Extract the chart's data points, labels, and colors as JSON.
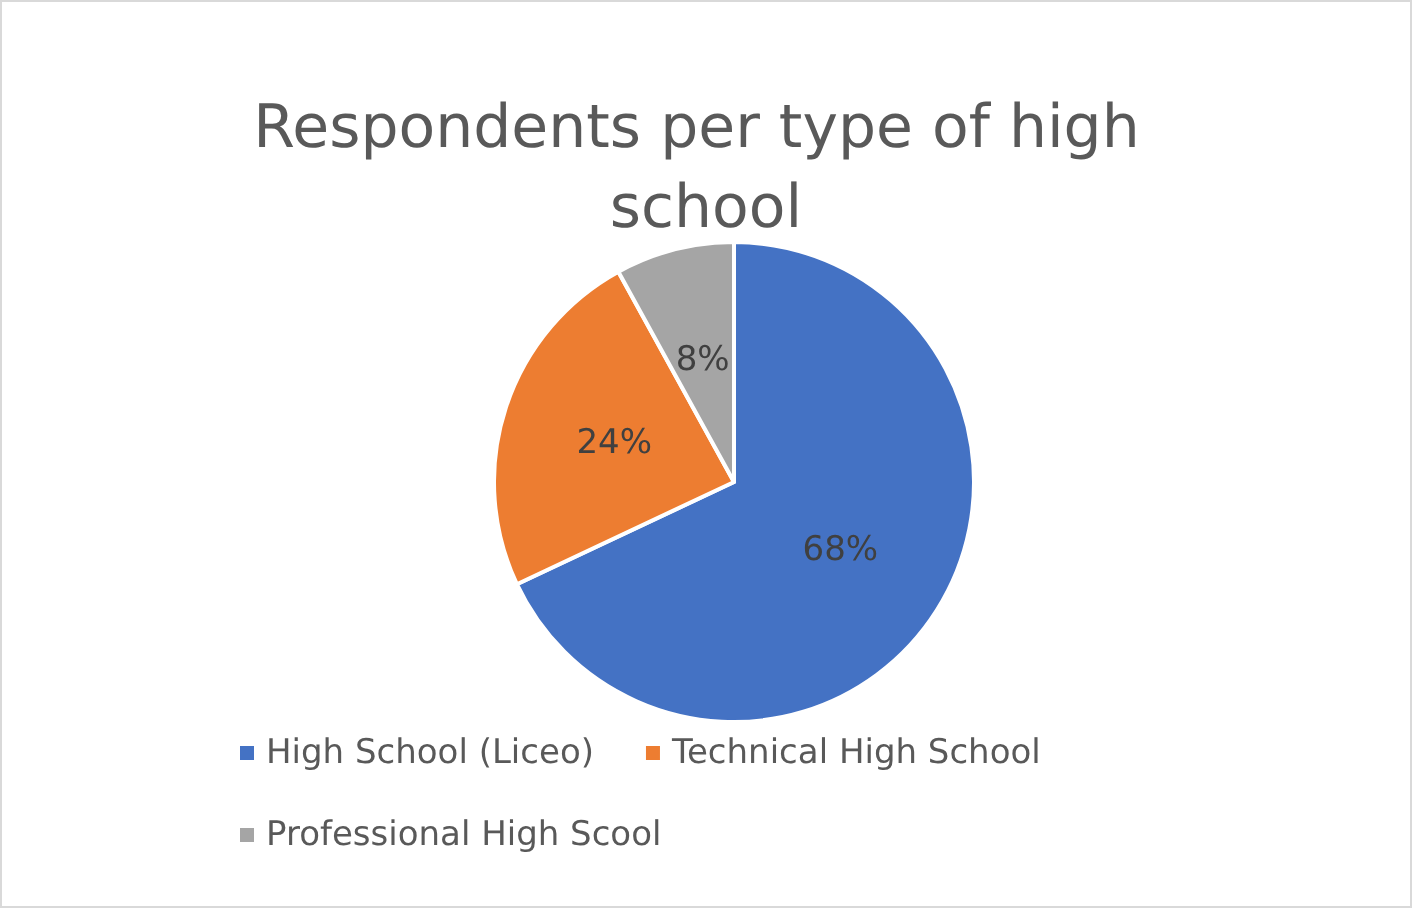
{
  "chart_data": {
    "type": "pie",
    "title": "Respondents per type of high school",
    "categories": [
      "High School (Liceo)",
      "Technical High School",
      "Professional High Scool"
    ],
    "values": [
      68,
      24,
      8
    ],
    "value_labels": [
      "68%",
      "24%",
      "8%"
    ],
    "colors": [
      "#4472c4",
      "#ed7d31",
      "#a5a5a5"
    ],
    "legend": "bottom"
  }
}
